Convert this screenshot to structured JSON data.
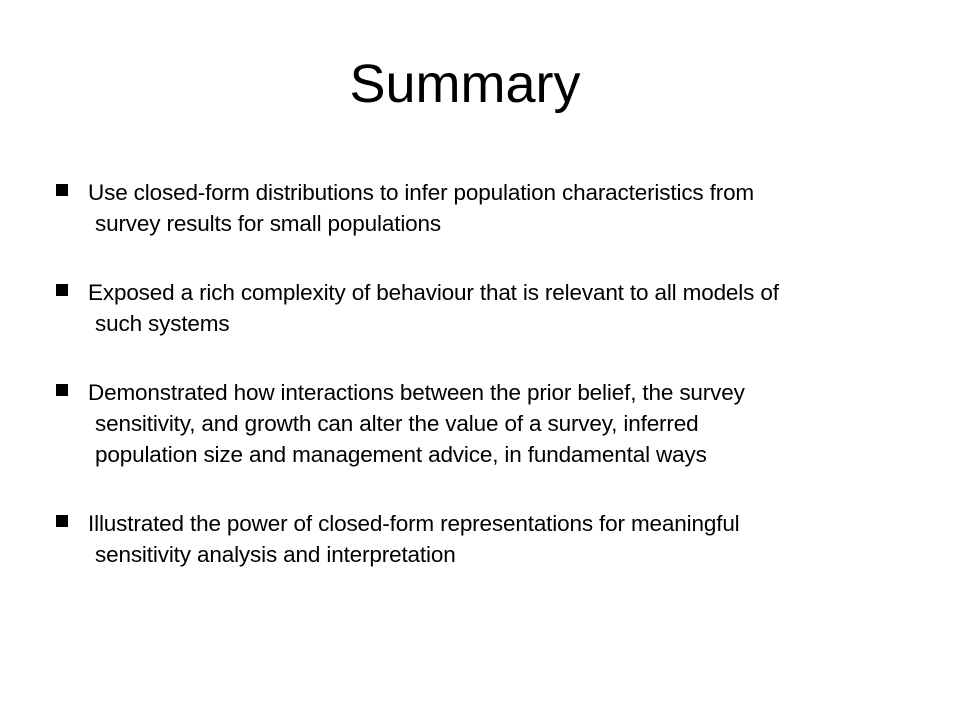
{
  "slide": {
    "title": "Summary",
    "bullets": [
      {
        "lines": [
          "Use closed-form distributions to infer population characteristics from",
          "survey results for small populations"
        ]
      },
      {
        "lines": [
          "Exposed a rich complexity of behaviour that is relevant to all models of",
          "such systems"
        ]
      },
      {
        "lines": [
          "Demonstrated how interactions between the prior belief, the survey",
          "sensitivity, and growth can alter the value of a survey, inferred",
          "population size and management advice, in fundamental ways"
        ]
      },
      {
        "lines": [
          "Illustrated the power of closed-form representations for meaningful",
          "sensitivity analysis and interpretation"
        ]
      }
    ],
    "colors": {
      "background": "#ffffff",
      "text": "#000000"
    },
    "bullet_icon": "square-bullet-icon"
  }
}
